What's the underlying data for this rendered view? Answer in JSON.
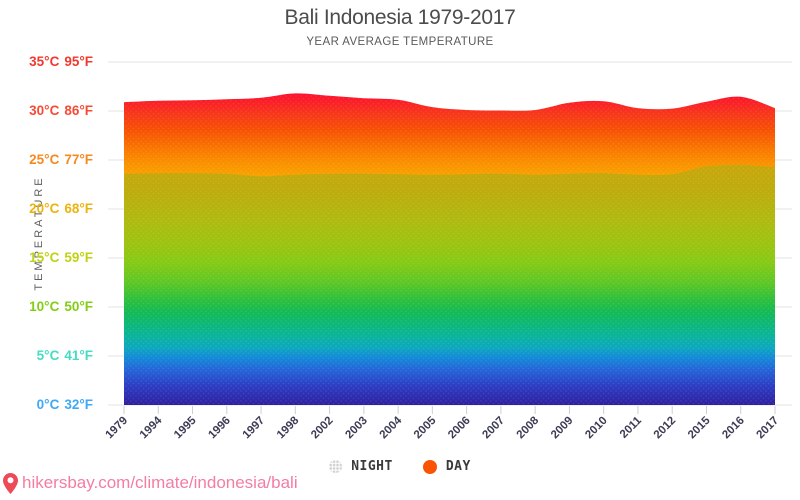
{
  "header": {
    "title": "Bali Indonesia 1979-2017",
    "subtitle": "YEAR AVERAGE TEMPERATURE"
  },
  "y_axis": {
    "axis_title": "TEMPERATURE",
    "ticks": [
      {
        "value": 35,
        "celsius": "35°C",
        "fahrenheit": "95°F",
        "color": "#f3382d"
      },
      {
        "value": 30,
        "celsius": "30°C",
        "fahrenheit": "86°F",
        "color": "#f74a35"
      },
      {
        "value": 25,
        "celsius": "25°C",
        "fahrenheit": "77°F",
        "color": "#f68a1f"
      },
      {
        "value": 20,
        "celsius": "20°C",
        "fahrenheit": "68°F",
        "color": "#ecb40e"
      },
      {
        "value": 15,
        "celsius": "15°C",
        "fahrenheit": "59°F",
        "color": "#bed312"
      },
      {
        "value": 10,
        "celsius": "10°C",
        "fahrenheit": "50°F",
        "color": "#82cd15"
      },
      {
        "value": 5,
        "celsius": "5°C",
        "fahrenheit": "41°F",
        "color": "#45dcc3"
      },
      {
        "value": 0,
        "celsius": "0°C",
        "fahrenheit": "32°F",
        "color": "#3fa9f5"
      }
    ]
  },
  "chart_data": {
    "type": "area",
    "title": "Bali Indonesia 1979-2017",
    "subtitle": "YEAR AVERAGE TEMPERATURE",
    "categories": [
      "1979",
      "1994",
      "1995",
      "1996",
      "1997",
      "1998",
      "2002",
      "2003",
      "2004",
      "2005",
      "2006",
      "2007",
      "2008",
      "2009",
      "2010",
      "2011",
      "2012",
      "2015",
      "2016",
      "2017"
    ],
    "series": [
      {
        "name": "NIGHT",
        "unit": "°C",
        "values": [
          23.6,
          23.65,
          23.65,
          23.6,
          23.35,
          23.5,
          23.6,
          23.6,
          23.55,
          23.5,
          23.55,
          23.6,
          23.5,
          23.6,
          23.65,
          23.5,
          23.55,
          24.35,
          24.5,
          24.25
        ]
      },
      {
        "name": "DAY",
        "unit": "°C",
        "values": [
          30.9,
          31.05,
          31.1,
          31.2,
          31.35,
          31.8,
          31.55,
          31.3,
          31.15,
          30.4,
          30.1,
          30.05,
          30.1,
          30.85,
          31.0,
          30.3,
          30.25,
          30.95,
          31.45,
          30.3
        ]
      }
    ],
    "ylabel": "TEMPERATURE",
    "ylim": [
      0,
      35
    ],
    "y_tick_step": 5,
    "grid": true,
    "legend_position": "bottom"
  },
  "legend": {
    "items": [
      {
        "label": "NIGHT",
        "marker": "dotted-gray"
      },
      {
        "label": "DAY",
        "marker": "solid",
        "color": "#f95403"
      }
    ]
  },
  "footer": {
    "url": "hikersbay.com/climate/indonesia/bali",
    "pin_color": "#ee4956",
    "text_color": "#f47da2"
  },
  "style": {
    "grid_color": "#e3e3e3",
    "tick_color": "#cfcfcf",
    "year_label_color": "#3c3c55",
    "day_gradient": [
      [
        32.5,
        "#ff0636"
      ],
      [
        31,
        "#fa1e28"
      ],
      [
        29.5,
        "#f73a17"
      ],
      [
        28,
        "#f75204"
      ],
      [
        26,
        "#f97a00"
      ],
      [
        24.5,
        "#fa9300"
      ],
      [
        23.2,
        "#f8a500"
      ],
      [
        22.9,
        "#c9a50c"
      ],
      [
        21.5,
        "#bcad0d"
      ],
      [
        19,
        "#b0b90f"
      ],
      [
        16.5,
        "#9dc311"
      ],
      [
        14.5,
        "#85ca15"
      ],
      [
        12.5,
        "#5ec725"
      ],
      [
        10.8,
        "#2fc03c"
      ],
      [
        9.5,
        "#14ba55"
      ],
      [
        8,
        "#0cb77f"
      ],
      [
        6.8,
        "#0bb2a2"
      ],
      [
        5.8,
        "#0da6c0"
      ],
      [
        4.8,
        "#1488d8"
      ],
      [
        3.5,
        "#2562d8"
      ],
      [
        2,
        "#2c3ec4"
      ],
      [
        0.8,
        "#2e2cae"
      ],
      [
        0,
        "#301fa0"
      ]
    ],
    "night_gradient": [
      [
        24.7,
        "#c9a50c"
      ],
      [
        21.5,
        "#bcad0d"
      ],
      [
        19,
        "#b0b90f"
      ],
      [
        16.5,
        "#9dc311"
      ],
      [
        14.5,
        "#85ca15"
      ],
      [
        12.5,
        "#5ec725"
      ],
      [
        10.8,
        "#2fc03c"
      ],
      [
        9.5,
        "#14ba55"
      ],
      [
        8,
        "#0cb77f"
      ],
      [
        6.8,
        "#0bb2a2"
      ],
      [
        5.8,
        "#0da6c0"
      ],
      [
        4.8,
        "#1488d8"
      ],
      [
        3.5,
        "#2562d8"
      ],
      [
        2,
        "#2c3ec4"
      ],
      [
        0.8,
        "#2e2cae"
      ],
      [
        0,
        "#301fa0"
      ]
    ]
  }
}
